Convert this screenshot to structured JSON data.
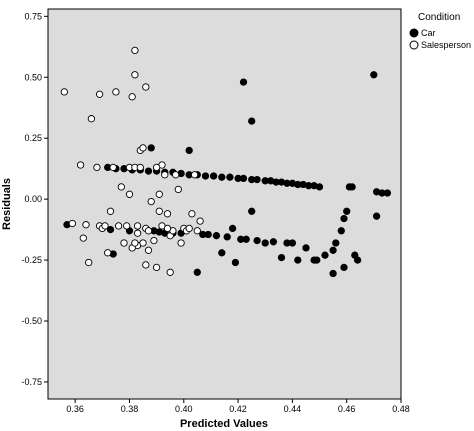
{
  "chart_data": {
    "type": "scatter",
    "xlabel": "Predicted Values",
    "ylabel": "Residuals",
    "xlim": [
      0.35,
      0.48
    ],
    "ylim": [
      -0.82,
      0.78
    ],
    "x_ticks": [
      "0.36",
      "0.38",
      "0.40",
      "0.42",
      "0.44",
      "0.46",
      "0.48"
    ],
    "y_ticks": [
      "0.75",
      "0.50",
      "0.25",
      "0.00",
      "-0.25",
      "-0.50",
      "-0.75"
    ],
    "grid": false,
    "legend": {
      "title": "Condition",
      "position": "top-right"
    },
    "colors": {
      "plot_background": "#dcdcdc",
      "car": "#000000",
      "salesperson_fill": "#ffffff",
      "salesperson_stroke": "#000000"
    },
    "series": [
      {
        "name": "Car",
        "marker": "filled-circle",
        "points": [
          [
            0.357,
            -0.105
          ],
          [
            0.373,
            -0.125
          ],
          [
            0.374,
            -0.225
          ],
          [
            0.38,
            -0.13
          ],
          [
            0.388,
            0.21
          ],
          [
            0.389,
            -0.13
          ],
          [
            0.391,
            -0.135
          ],
          [
            0.393,
            -0.14
          ],
          [
            0.396,
            -0.14
          ],
          [
            0.399,
            -0.14
          ],
          [
            0.402,
            0.2
          ],
          [
            0.405,
            -0.3
          ],
          [
            0.407,
            -0.145
          ],
          [
            0.409,
            -0.145
          ],
          [
            0.412,
            -0.15
          ],
          [
            0.414,
            -0.22
          ],
          [
            0.416,
            -0.155
          ],
          [
            0.418,
            -0.12
          ],
          [
            0.419,
            -0.26
          ],
          [
            0.421,
            -0.165
          ],
          [
            0.422,
            0.48
          ],
          [
            0.423,
            -0.165
          ],
          [
            0.425,
            0.32
          ],
          [
            0.425,
            -0.05
          ],
          [
            0.427,
            -0.17
          ],
          [
            0.43,
            -0.18
          ],
          [
            0.433,
            -0.175
          ],
          [
            0.436,
            -0.24
          ],
          [
            0.438,
            -0.18
          ],
          [
            0.44,
            -0.18
          ],
          [
            0.442,
            -0.25
          ],
          [
            0.445,
            -0.2
          ],
          [
            0.448,
            -0.25
          ],
          [
            0.449,
            -0.25
          ],
          [
            0.452,
            -0.23
          ],
          [
            0.455,
            -0.305
          ],
          [
            0.455,
            -0.21
          ],
          [
            0.456,
            -0.18
          ],
          [
            0.458,
            -0.13
          ],
          [
            0.459,
            -0.08
          ],
          [
            0.46,
            -0.05
          ],
          [
            0.461,
            0.05
          ],
          [
            0.462,
            0.05
          ],
          [
            0.459,
            -0.28
          ],
          [
            0.463,
            -0.23
          ],
          [
            0.464,
            -0.25
          ],
          [
            0.47,
            0.51
          ],
          [
            0.471,
            -0.07
          ],
          [
            0.471,
            0.03
          ],
          [
            0.473,
            0.025
          ],
          [
            0.475,
            0.025
          ],
          [
            0.372,
            0.13
          ],
          [
            0.375,
            0.125
          ],
          [
            0.378,
            0.125
          ],
          [
            0.381,
            0.12
          ],
          [
            0.384,
            0.12
          ],
          [
            0.387,
            0.115
          ],
          [
            0.39,
            0.115
          ],
          [
            0.393,
            0.11
          ],
          [
            0.396,
            0.11
          ],
          [
            0.399,
            0.105
          ],
          [
            0.402,
            0.1
          ],
          [
            0.405,
            0.1
          ],
          [
            0.408,
            0.095
          ],
          [
            0.411,
            0.095
          ],
          [
            0.414,
            0.09
          ],
          [
            0.417,
            0.09
          ],
          [
            0.42,
            0.085
          ],
          [
            0.422,
            0.085
          ],
          [
            0.425,
            0.08
          ],
          [
            0.427,
            0.08
          ],
          [
            0.43,
            0.075
          ],
          [
            0.432,
            0.075
          ],
          [
            0.434,
            0.07
          ],
          [
            0.436,
            0.07
          ],
          [
            0.438,
            0.065
          ],
          [
            0.44,
            0.065
          ],
          [
            0.442,
            0.06
          ],
          [
            0.444,
            0.06
          ],
          [
            0.446,
            0.055
          ],
          [
            0.448,
            0.055
          ],
          [
            0.45,
            0.05
          ]
        ]
      },
      {
        "name": "Salesperson",
        "marker": "open-circle",
        "points": [
          [
            0.356,
            0.44
          ],
          [
            0.359,
            -0.1
          ],
          [
            0.362,
            0.14
          ],
          [
            0.363,
            -0.16
          ],
          [
            0.364,
            -0.105
          ],
          [
            0.365,
            -0.26
          ],
          [
            0.366,
            0.33
          ],
          [
            0.368,
            0.13
          ],
          [
            0.369,
            -0.11
          ],
          [
            0.37,
            -0.12
          ],
          [
            0.369,
            0.43
          ],
          [
            0.371,
            -0.11
          ],
          [
            0.372,
            -0.22
          ],
          [
            0.373,
            -0.05
          ],
          [
            0.374,
            0.13
          ],
          [
            0.375,
            0.44
          ],
          [
            0.376,
            -0.11
          ],
          [
            0.377,
            0.05
          ],
          [
            0.378,
            -0.18
          ],
          [
            0.379,
            -0.11
          ],
          [
            0.38,
            0.13
          ],
          [
            0.381,
            0.42
          ],
          [
            0.382,
            0.51
          ],
          [
            0.382,
            0.61
          ],
          [
            0.383,
            -0.19
          ],
          [
            0.382,
            0.13
          ],
          [
            0.383,
            -0.14
          ],
          [
            0.384,
            0.2
          ],
          [
            0.385,
            0.21
          ],
          [
            0.386,
            0.46
          ],
          [
            0.386,
            -0.12
          ],
          [
            0.387,
            -0.13
          ],
          [
            0.38,
            0.02
          ],
          [
            0.381,
            -0.2
          ],
          [
            0.382,
            -0.18
          ],
          [
            0.383,
            -0.11
          ],
          [
            0.384,
            0.13
          ],
          [
            0.385,
            -0.18
          ],
          [
            0.386,
            -0.27
          ],
          [
            0.387,
            -0.21
          ],
          [
            0.388,
            -0.01
          ],
          [
            0.389,
            -0.17
          ],
          [
            0.39,
            -0.28
          ],
          [
            0.391,
            0.02
          ],
          [
            0.392,
            -0.11
          ],
          [
            0.393,
            0.1
          ],
          [
            0.394,
            -0.06
          ],
          [
            0.395,
            -0.15
          ],
          [
            0.395,
            -0.3
          ],
          [
            0.396,
            -0.13
          ],
          [
            0.397,
            0.1
          ],
          [
            0.398,
            0.04
          ],
          [
            0.399,
            -0.18
          ],
          [
            0.4,
            -0.12
          ],
          [
            0.401,
            -0.13
          ],
          [
            0.402,
            -0.12
          ],
          [
            0.403,
            -0.06
          ],
          [
            0.404,
            0.1
          ],
          [
            0.405,
            -0.13
          ],
          [
            0.406,
            -0.09
          ],
          [
            0.392,
            0.14
          ],
          [
            0.39,
            0.13
          ],
          [
            0.391,
            -0.05
          ],
          [
            0.394,
            -0.12
          ]
        ]
      }
    ]
  }
}
